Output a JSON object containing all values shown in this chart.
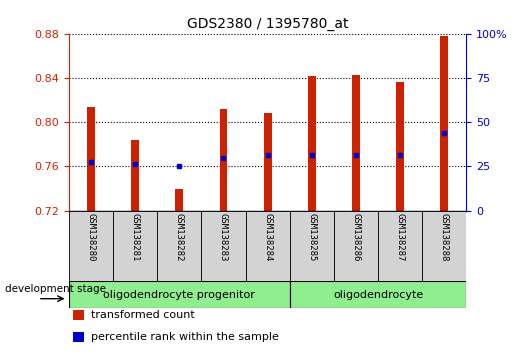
{
  "title": "GDS2380 / 1395780_at",
  "samples": [
    "GSM138280",
    "GSM138281",
    "GSM138282",
    "GSM138283",
    "GSM138284",
    "GSM138285",
    "GSM138286",
    "GSM138287",
    "GSM138288"
  ],
  "bar_bottom": 0.72,
  "transformed_counts": [
    0.814,
    0.784,
    0.74,
    0.812,
    0.808,
    0.842,
    0.843,
    0.836,
    0.878
  ],
  "percentile_ranks": [
    0.764,
    0.762,
    0.76,
    0.768,
    0.77,
    0.77,
    0.77,
    0.77,
    0.79
  ],
  "ylim_left": [
    0.72,
    0.88
  ],
  "yticks_left": [
    0.72,
    0.76,
    0.8,
    0.84,
    0.88
  ],
  "ylim_right": [
    0,
    100
  ],
  "yticks_right": [
    0,
    25,
    50,
    75,
    100
  ],
  "ytick_labels_right": [
    "0",
    "25",
    "50",
    "75",
    "100%"
  ],
  "bar_color": "#cc2200",
  "dot_color": "#0000cc",
  "bar_width": 0.18,
  "groups": [
    {
      "label": "oligodendrocyte progenitor",
      "start": 0,
      "end": 4,
      "color": "#90ee90"
    },
    {
      "label": "oligodendrocyte",
      "start": 5,
      "end": 8,
      "color": "#90ee90"
    }
  ],
  "stage_label": "development stage",
  "legend_items": [
    {
      "color": "#cc2200",
      "label": "transformed count"
    },
    {
      "color": "#0000cc",
      "label": "percentile rank within the sample"
    }
  ],
  "tick_color_left": "#cc2200",
  "tick_color_right": "#0000cc",
  "xlabel_bg": "#d3d3d3",
  "spine_bottom_color": "#000000"
}
